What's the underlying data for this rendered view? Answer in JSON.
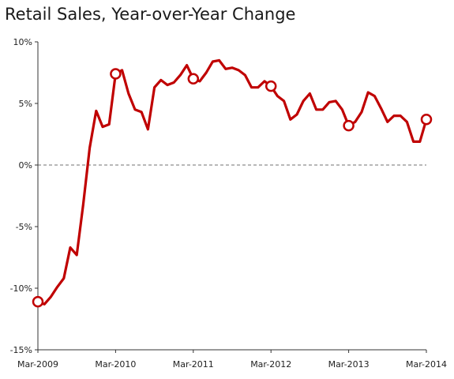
{
  "chart_data": {
    "type": "line",
    "title": "Retail Sales, Year-over-Year Change",
    "xlabel": "",
    "ylabel": "",
    "ylim": [
      -15,
      10
    ],
    "y_ticks": [
      "10%",
      "5%",
      "0%",
      "-5%",
      "-10%",
      "-15%"
    ],
    "y_tick_values": [
      10,
      5,
      0,
      -5,
      -10,
      -15
    ],
    "x_ticks": [
      "Mar-2009",
      "Mar-2010",
      "Mar-2011",
      "Mar-2012",
      "Mar-2013",
      "Mar-2014"
    ],
    "x_tick_months": [
      0,
      12,
      24,
      36,
      48,
      60
    ],
    "zero_line": "dashed",
    "line_color": "#c00000",
    "series": [
      {
        "values": [
          -11.1,
          -11.3,
          -10.7,
          -9.9,
          -9.2,
          -6.7,
          -7.3,
          -3.2,
          1.4,
          4.4,
          3.1,
          3.3,
          7.4,
          7.7,
          5.8,
          4.5,
          4.3,
          2.9,
          6.3,
          6.9,
          6.5,
          6.7,
          7.3,
          8.1,
          7.0,
          6.8,
          7.5,
          8.4,
          8.5,
          7.8,
          7.9,
          7.7,
          7.3,
          6.3,
          6.3,
          6.8,
          6.4,
          5.6,
          5.2,
          3.7,
          4.1,
          5.2,
          5.8,
          4.5,
          4.5,
          5.1,
          5.2,
          4.5,
          3.2,
          3.5,
          4.3,
          5.9,
          5.6,
          4.6,
          3.5,
          4.0,
          4.0,
          3.5,
          1.9,
          1.9,
          3.7
        ],
        "markers_at_months": [
          0,
          12,
          24,
          36,
          48,
          60
        ]
      }
    ]
  }
}
